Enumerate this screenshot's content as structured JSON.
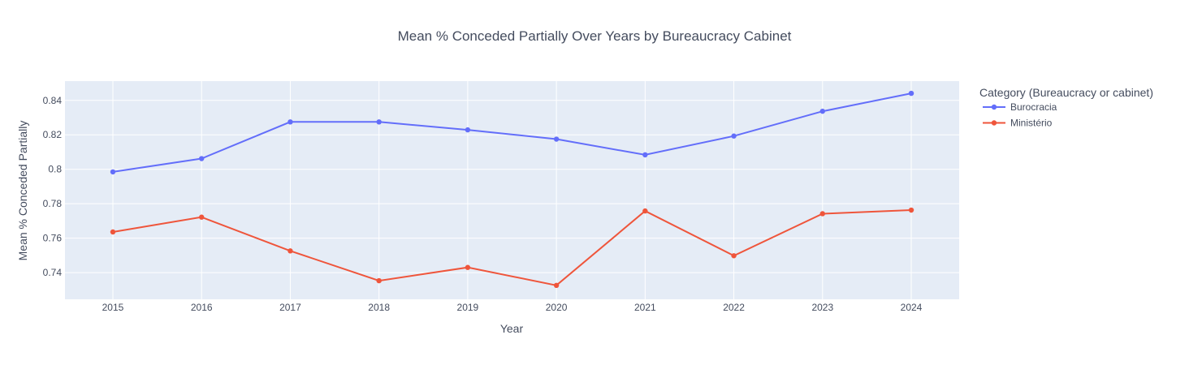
{
  "chart_data": {
    "type": "line",
    "title": "Mean % Conceded Partially Over Years by Bureaucracy Cabinet",
    "xlabel": "Year",
    "ylabel": "Mean % Conceded Partially",
    "x": [
      2015,
      2016,
      2017,
      2018,
      2019,
      2020,
      2021,
      2022,
      2023,
      2024
    ],
    "x_tick_labels": [
      "2015",
      "2016",
      "2017",
      "2018",
      "2019",
      "2020",
      "2021",
      "2022",
      "2023",
      "2024"
    ],
    "y_ticks": [
      0.74,
      0.76,
      0.78,
      0.8,
      0.82,
      0.84
    ],
    "y_tick_labels": [
      "0.74",
      "0.76",
      "0.78",
      "0.8",
      "0.82",
      "0.84"
    ],
    "ylim": [
      0.7245,
      0.8512
    ],
    "xlim": [
      2014.46,
      2024.54
    ],
    "grid": true,
    "legend": {
      "title": "Category (Bureaucracy or cabinet)",
      "placement": "right"
    },
    "series": [
      {
        "name": "Burocracia",
        "color": "#636efa",
        "values": [
          0.7985,
          0.8062,
          0.8275,
          0.8275,
          0.8229,
          0.8175,
          0.8084,
          0.8193,
          0.8337,
          0.8441
        ]
      },
      {
        "name": "Ministério",
        "color": "#ef553b",
        "values": [
          0.7636,
          0.7722,
          0.7526,
          0.7353,
          0.743,
          0.7326,
          0.7758,
          0.7498,
          0.7742,
          0.7763
        ]
      }
    ]
  }
}
